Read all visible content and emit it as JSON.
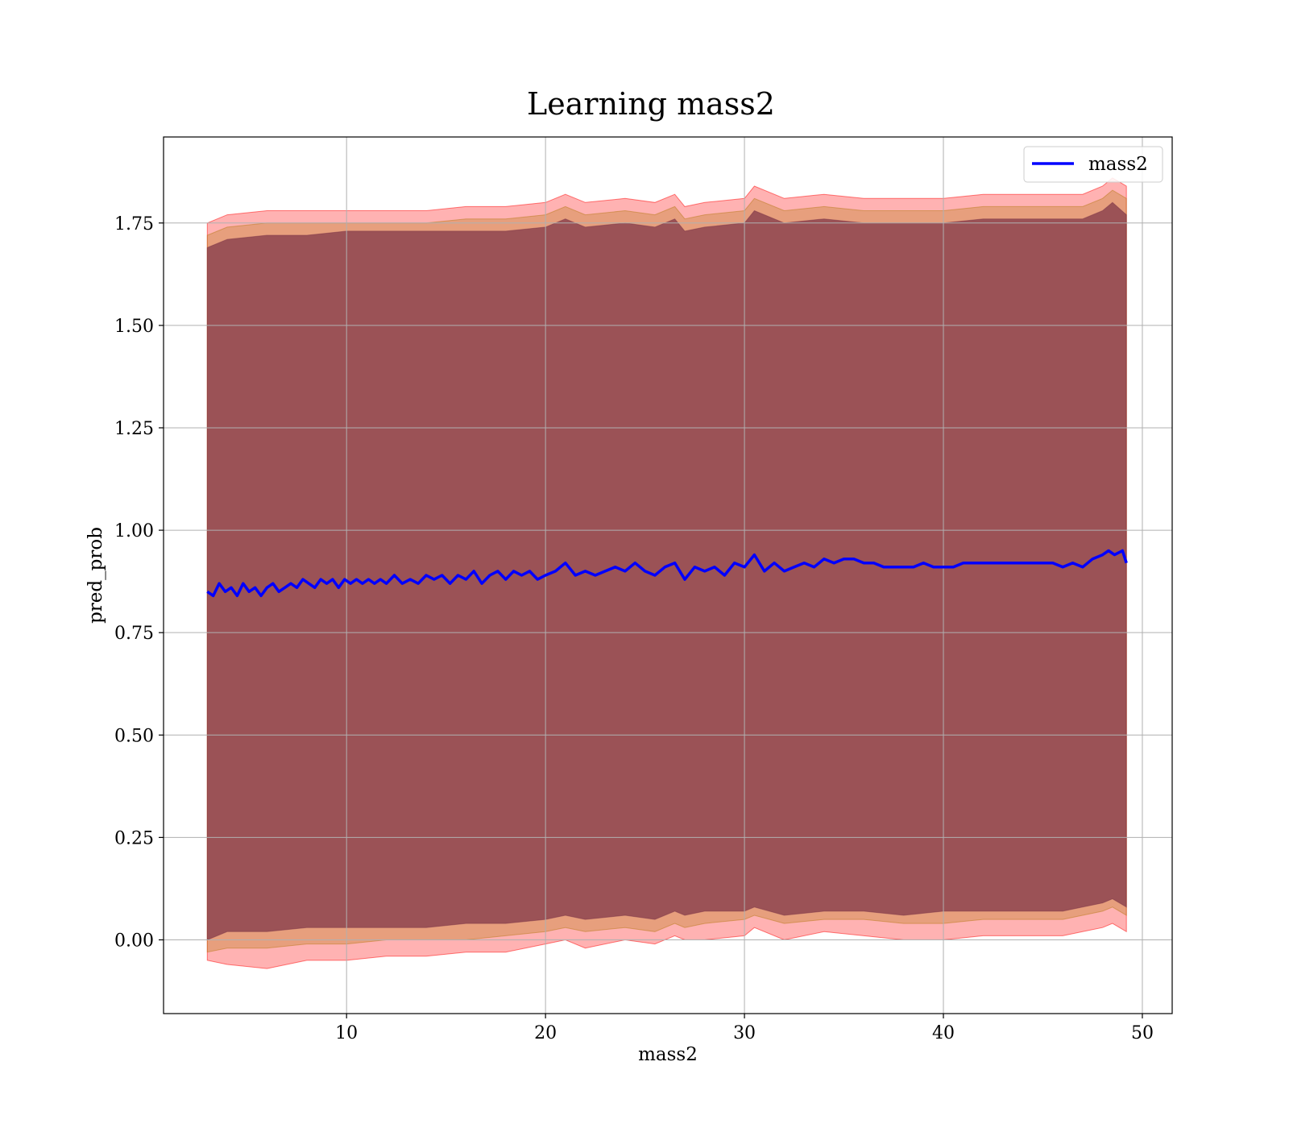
{
  "chart_data": {
    "type": "area",
    "title": "Learning mass2",
    "xlabel": "mass2",
    "ylabel": "pred_prob",
    "xlim": [
      0.8,
      51.5
    ],
    "ylim": [
      -0.18,
      1.96
    ],
    "xticks": [
      10,
      20,
      30,
      40,
      50
    ],
    "yticks": [
      0.0,
      0.25,
      0.5,
      0.75,
      1.0,
      1.25,
      1.5,
      1.75
    ],
    "xtick_labels": [
      "10",
      "20",
      "30",
      "40",
      "50"
    ],
    "ytick_labels": [
      "0.00",
      "0.25",
      "0.50",
      "0.75",
      "1.00",
      "1.25",
      "1.50",
      "1.75"
    ],
    "grid": true,
    "legend_position": "top-right",
    "series": [
      {
        "name": "mass2",
        "color": "#0000ff",
        "x": [
          3.0,
          3.3,
          3.6,
          3.9,
          4.2,
          4.5,
          4.8,
          5.1,
          5.4,
          5.7,
          6.0,
          6.3,
          6.6,
          6.9,
          7.2,
          7.5,
          7.8,
          8.1,
          8.4,
          8.7,
          9.0,
          9.3,
          9.6,
          9.9,
          10.2,
          10.5,
          10.8,
          11.1,
          11.4,
          11.7,
          12.0,
          12.4,
          12.8,
          13.2,
          13.6,
          14.0,
          14.4,
          14.8,
          15.2,
          15.6,
          16.0,
          16.4,
          16.8,
          17.2,
          17.6,
          18.0,
          18.4,
          18.8,
          19.2,
          19.6,
          20.0,
          20.5,
          21.0,
          21.5,
          22.0,
          22.5,
          23.0,
          23.5,
          24.0,
          24.5,
          25.0,
          25.5,
          26.0,
          26.5,
          27.0,
          27.5,
          28.0,
          28.5,
          29.0,
          29.5,
          30.0,
          30.5,
          31.0,
          31.5,
          32.0,
          32.5,
          33.0,
          33.5,
          34.0,
          34.5,
          35.0,
          35.5,
          36.0,
          36.5,
          37.0,
          37.5,
          38.0,
          38.5,
          39.0,
          39.5,
          40.0,
          40.5,
          41.0,
          41.5,
          42.0,
          42.5,
          43.0,
          43.5,
          44.0,
          44.5,
          45.0,
          45.5,
          46.0,
          46.5,
          47.0,
          47.5,
          48.0,
          48.3,
          48.6,
          49.0,
          49.2
        ],
        "y": [
          0.85,
          0.84,
          0.87,
          0.85,
          0.86,
          0.84,
          0.87,
          0.85,
          0.86,
          0.84,
          0.86,
          0.87,
          0.85,
          0.86,
          0.87,
          0.86,
          0.88,
          0.87,
          0.86,
          0.88,
          0.87,
          0.88,
          0.86,
          0.88,
          0.87,
          0.88,
          0.87,
          0.88,
          0.87,
          0.88,
          0.87,
          0.89,
          0.87,
          0.88,
          0.87,
          0.89,
          0.88,
          0.89,
          0.87,
          0.89,
          0.88,
          0.9,
          0.87,
          0.89,
          0.9,
          0.88,
          0.9,
          0.89,
          0.9,
          0.88,
          0.89,
          0.9,
          0.92,
          0.89,
          0.9,
          0.89,
          0.9,
          0.91,
          0.9,
          0.92,
          0.9,
          0.89,
          0.91,
          0.92,
          0.88,
          0.91,
          0.9,
          0.91,
          0.89,
          0.92,
          0.91,
          0.94,
          0.9,
          0.92,
          0.9,
          0.91,
          0.92,
          0.91,
          0.93,
          0.92,
          0.93,
          0.93,
          0.92,
          0.92,
          0.91,
          0.91,
          0.91,
          0.91,
          0.92,
          0.91,
          0.91,
          0.91,
          0.92,
          0.92,
          0.92,
          0.92,
          0.92,
          0.92,
          0.92,
          0.92,
          0.92,
          0.92,
          0.91,
          0.92,
          0.91,
          0.93,
          0.94,
          0.95,
          0.94,
          0.95,
          0.92
        ]
      }
    ],
    "bands": [
      {
        "color": "#ff0000",
        "opacity": 0.3,
        "x": [
          3.0,
          4.0,
          6.0,
          8.0,
          10.0,
          12.0,
          14.0,
          16.0,
          18.0,
          20.0,
          21.0,
          22.0,
          24.0,
          25.5,
          26.5,
          27.0,
          28.0,
          30.0,
          30.5,
          32.0,
          34.0,
          36.0,
          38.0,
          40.0,
          42.0,
          44.0,
          46.0,
          47.0,
          48.0,
          48.5,
          49.2
        ],
        "lower": [
          -0.05,
          -0.06,
          -0.07,
          -0.05,
          -0.05,
          -0.04,
          -0.04,
          -0.03,
          -0.03,
          -0.01,
          0.0,
          -0.02,
          0.0,
          -0.01,
          0.01,
          0.0,
          0.0,
          0.01,
          0.03,
          0.0,
          0.02,
          0.01,
          0.0,
          0.0,
          0.01,
          0.01,
          0.01,
          0.02,
          0.03,
          0.04,
          0.02
        ],
        "upper": [
          1.75,
          1.77,
          1.78,
          1.78,
          1.78,
          1.78,
          1.78,
          1.79,
          1.79,
          1.8,
          1.82,
          1.8,
          1.81,
          1.8,
          1.82,
          1.79,
          1.8,
          1.81,
          1.84,
          1.81,
          1.82,
          1.81,
          1.81,
          1.81,
          1.82,
          1.82,
          1.82,
          1.82,
          1.84,
          1.86,
          1.84
        ]
      },
      {
        "color": "#b97a1a",
        "opacity": 0.35,
        "x": [
          3.0,
          4.0,
          6.0,
          8.0,
          10.0,
          12.0,
          14.0,
          16.0,
          18.0,
          20.0,
          21.0,
          22.0,
          24.0,
          25.5,
          26.5,
          27.0,
          28.0,
          30.0,
          30.5,
          32.0,
          34.0,
          36.0,
          38.0,
          40.0,
          42.0,
          44.0,
          46.0,
          47.0,
          48.0,
          48.5,
          49.2
        ],
        "lower": [
          -0.03,
          -0.02,
          -0.02,
          -0.01,
          -0.01,
          0.0,
          0.0,
          0.0,
          0.01,
          0.02,
          0.03,
          0.02,
          0.03,
          0.02,
          0.04,
          0.03,
          0.04,
          0.05,
          0.06,
          0.04,
          0.05,
          0.05,
          0.04,
          0.04,
          0.05,
          0.05,
          0.05,
          0.06,
          0.07,
          0.08,
          0.06
        ],
        "upper": [
          1.72,
          1.74,
          1.75,
          1.75,
          1.75,
          1.75,
          1.75,
          1.76,
          1.76,
          1.77,
          1.79,
          1.77,
          1.78,
          1.77,
          1.79,
          1.76,
          1.77,
          1.78,
          1.81,
          1.78,
          1.79,
          1.78,
          1.78,
          1.78,
          1.79,
          1.79,
          1.79,
          1.79,
          1.81,
          1.83,
          1.81
        ]
      },
      {
        "color": "#7a3246",
        "opacity": 0.7,
        "x": [
          3.0,
          4.0,
          6.0,
          8.0,
          10.0,
          12.0,
          14.0,
          16.0,
          18.0,
          20.0,
          21.0,
          22.0,
          24.0,
          25.5,
          26.5,
          27.0,
          28.0,
          30.0,
          30.5,
          32.0,
          34.0,
          36.0,
          38.0,
          40.0,
          42.0,
          44.0,
          46.0,
          47.0,
          48.0,
          48.5,
          49.2
        ],
        "lower": [
          0.0,
          0.02,
          0.02,
          0.03,
          0.03,
          0.03,
          0.03,
          0.04,
          0.04,
          0.05,
          0.06,
          0.05,
          0.06,
          0.05,
          0.07,
          0.06,
          0.07,
          0.07,
          0.08,
          0.06,
          0.07,
          0.07,
          0.06,
          0.07,
          0.07,
          0.07,
          0.07,
          0.08,
          0.09,
          0.1,
          0.08
        ],
        "upper": [
          1.69,
          1.71,
          1.72,
          1.72,
          1.73,
          1.73,
          1.73,
          1.73,
          1.73,
          1.74,
          1.76,
          1.74,
          1.75,
          1.74,
          1.76,
          1.73,
          1.74,
          1.75,
          1.78,
          1.75,
          1.76,
          1.75,
          1.75,
          1.75,
          1.76,
          1.76,
          1.76,
          1.76,
          1.78,
          1.8,
          1.77
        ]
      }
    ]
  }
}
